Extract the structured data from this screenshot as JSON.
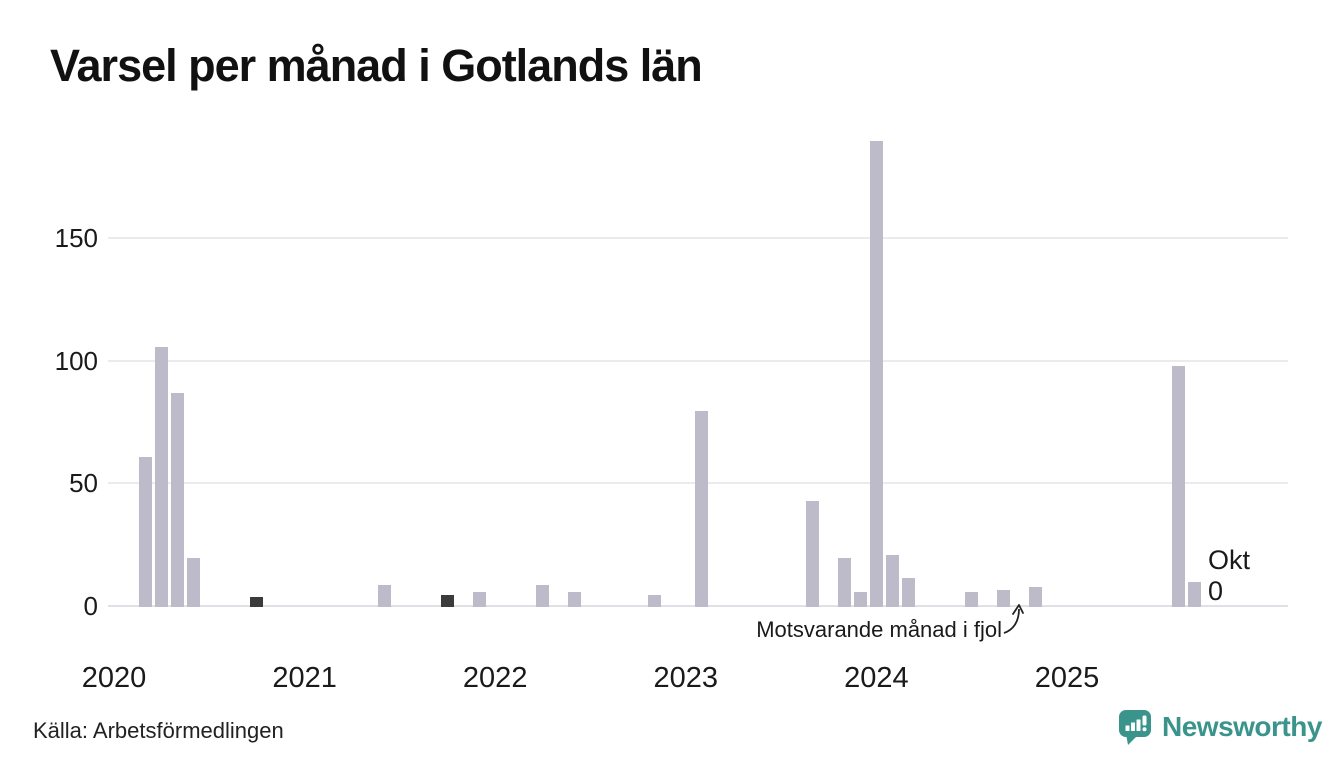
{
  "title": "Varsel per månad i Gotlands län",
  "source": "Källa: Arbetsförmedlingen",
  "annotation": {
    "text": "Motsvarande månad i fjol"
  },
  "current_point_label": {
    "line1": "Okt",
    "line2": "0"
  },
  "logo": {
    "text": "Newsworthy"
  },
  "colors": {
    "bar": "#bdbac9",
    "bar_highlight": "#3b3b3b",
    "gridline": "#eaeaef",
    "baseline": "#e0e0e7",
    "text": "#1a1a1a",
    "brand_teal": "#3a948b"
  },
  "chart_data": {
    "type": "bar",
    "title": "Varsel per månad i Gotlands län",
    "xlabel": "",
    "ylabel": "",
    "y_ticks": [
      0,
      50,
      100,
      150
    ],
    "ylim": [
      0,
      195
    ],
    "grid": "horizontal",
    "legend_position": "none",
    "x_year_labels": [
      "2020",
      "2021",
      "2022",
      "2023",
      "2024",
      "2025"
    ],
    "points": [
      {
        "month": "2020-03",
        "value": 61
      },
      {
        "month": "2020-04",
        "value": 106
      },
      {
        "month": "2020-05",
        "value": 87
      },
      {
        "month": "2020-06",
        "value": 20
      },
      {
        "month": "2020-10",
        "value": 4,
        "highlight": true
      },
      {
        "month": "2021-06",
        "value": 9
      },
      {
        "month": "2021-10",
        "value": 5,
        "highlight": true
      },
      {
        "month": "2021-12",
        "value": 6
      },
      {
        "month": "2022-04",
        "value": 9
      },
      {
        "month": "2022-06",
        "value": 6
      },
      {
        "month": "2022-11",
        "value": 5
      },
      {
        "month": "2023-02",
        "value": 80
      },
      {
        "month": "2023-09",
        "value": 43
      },
      {
        "month": "2023-11",
        "value": 20
      },
      {
        "month": "2023-12",
        "value": 6
      },
      {
        "month": "2024-01",
        "value": 190
      },
      {
        "month": "2024-02",
        "value": 21
      },
      {
        "month": "2024-03",
        "value": 12
      },
      {
        "month": "2024-07",
        "value": 6
      },
      {
        "month": "2024-09",
        "value": 7
      },
      {
        "month": "2024-11",
        "value": 8
      },
      {
        "month": "2025-08",
        "value": 98
      },
      {
        "month": "2025-09",
        "value": 10
      },
      {
        "month": "2025-10",
        "value": 0
      }
    ],
    "annotations": [
      {
        "text": "Motsvarande månad i fjol",
        "target_month": "2024-10"
      },
      {
        "text": "Okt 0",
        "target_month": "2025-10"
      }
    ]
  }
}
